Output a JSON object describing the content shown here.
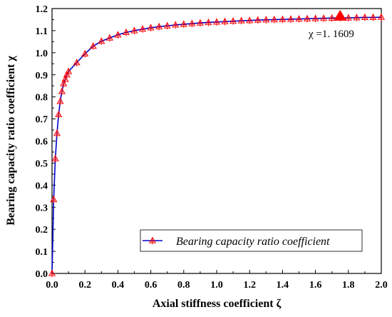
{
  "chart_data": {
    "type": "line",
    "xlabel": "Axial stiffness coefficient ζ",
    "ylabel": "Bearing capacity ratio coefficient χ",
    "xlim": [
      0.0,
      2.0
    ],
    "ylim": [
      0.0,
      1.2
    ],
    "x_ticks": [
      "0.0",
      "0.2",
      "0.4",
      "0.6",
      "0.8",
      "1.0",
      "1.2",
      "1.4",
      "1.6",
      "1.8",
      "2.0"
    ],
    "y_ticks": [
      "0.0",
      "0.1",
      "0.2",
      "0.3",
      "0.4",
      "0.5",
      "0.6",
      "0.7",
      "0.8",
      "0.9",
      "1.0",
      "1.1",
      "1.2"
    ],
    "grid": false,
    "legend_position": "bottom-right",
    "series": [
      {
        "name": "Bearing capacity ratio coefficient",
        "line_color": "#0000cc",
        "marker": "open-triangle-plus",
        "marker_color": "#ff0000",
        "x": [
          0.0,
          0.01,
          0.02,
          0.03,
          0.04,
          0.05,
          0.06,
          0.07,
          0.08,
          0.09,
          0.1,
          0.15,
          0.2,
          0.25,
          0.3,
          0.35,
          0.4,
          0.45,
          0.5,
          0.55,
          0.6,
          0.65,
          0.7,
          0.75,
          0.8,
          0.85,
          0.9,
          0.95,
          1.0,
          1.05,
          1.1,
          1.15,
          1.2,
          1.25,
          1.3,
          1.35,
          1.4,
          1.45,
          1.5,
          1.55,
          1.6,
          1.65,
          1.7,
          1.75,
          1.8,
          1.85,
          1.9,
          1.95,
          2.0
        ],
        "y": [
          0.0,
          0.335,
          0.52,
          0.635,
          0.72,
          0.78,
          0.825,
          0.86,
          0.88,
          0.9,
          0.915,
          0.955,
          0.995,
          1.03,
          1.052,
          1.067,
          1.081,
          1.092,
          1.1,
          1.107,
          1.113,
          1.118,
          1.122,
          1.126,
          1.129,
          1.132,
          1.135,
          1.137,
          1.139,
          1.141,
          1.143,
          1.145,
          1.146,
          1.148,
          1.149,
          1.15,
          1.151,
          1.152,
          1.153,
          1.154,
          1.155,
          1.156,
          1.157,
          1.158,
          1.158,
          1.159,
          1.16,
          1.16,
          1.161
        ]
      }
    ],
    "annotation": {
      "text": "χ =1. 1609",
      "x": 1.75,
      "y": 1.165,
      "marker": "filled-triangle",
      "color": "#ff0000"
    }
  }
}
